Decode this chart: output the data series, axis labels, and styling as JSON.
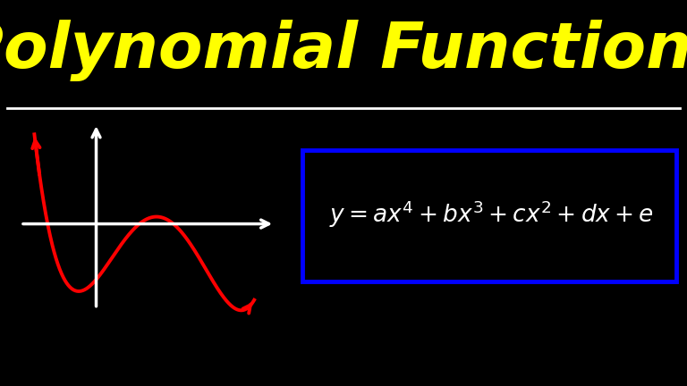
{
  "background_color": "#000000",
  "title_text": "Polynomial Functions",
  "title_color": "#FFFF00",
  "title_fontsize": 52,
  "separator_color": "#FFFFFF",
  "axes_color": "#FFFFFF",
  "curve_color": "#FF0000",
  "box_color": "#0000FF",
  "formula_color": "#FFFFFF"
}
